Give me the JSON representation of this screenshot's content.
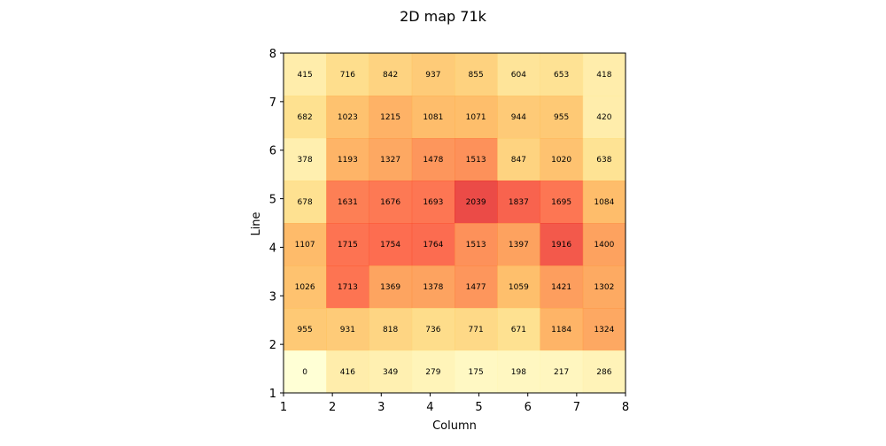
{
  "chart_data": {
    "type": "heatmap",
    "title": "2D map 71k",
    "xlabel": "Column",
    "ylabel": "Line",
    "x_ticks": [
      "1",
      "2",
      "3",
      "4",
      "5",
      "6",
      "7",
      "8"
    ],
    "y_ticks": [
      "1",
      "2",
      "3",
      "4",
      "5",
      "6",
      "7",
      "8"
    ],
    "xlim": [
      1,
      8
    ],
    "ylim": [
      1,
      8
    ],
    "colormap": "YlOrRd",
    "color_range": [
      0,
      2800
    ],
    "grid": false,
    "legend": "none",
    "rows_top_to_bottom": [
      [
        415,
        716,
        842,
        937,
        855,
        604,
        653,
        418
      ],
      [
        682,
        1023,
        1215,
        1081,
        1071,
        944,
        955,
        420
      ],
      [
        378,
        1193,
        1327,
        1478,
        1513,
        847,
        1020,
        638
      ],
      [
        678,
        1631,
        1676,
        1693,
        2039,
        1837,
        1695,
        1084
      ],
      [
        1107,
        1715,
        1754,
        1764,
        1513,
        1397,
        1916,
        1400
      ],
      [
        1026,
        1713,
        1369,
        1378,
        1477,
        1059,
        1421,
        1302
      ],
      [
        955,
        931,
        818,
        736,
        771,
        671,
        1184,
        1324
      ],
      [
        0,
        416,
        349,
        279,
        175,
        198,
        217,
        286
      ]
    ]
  }
}
